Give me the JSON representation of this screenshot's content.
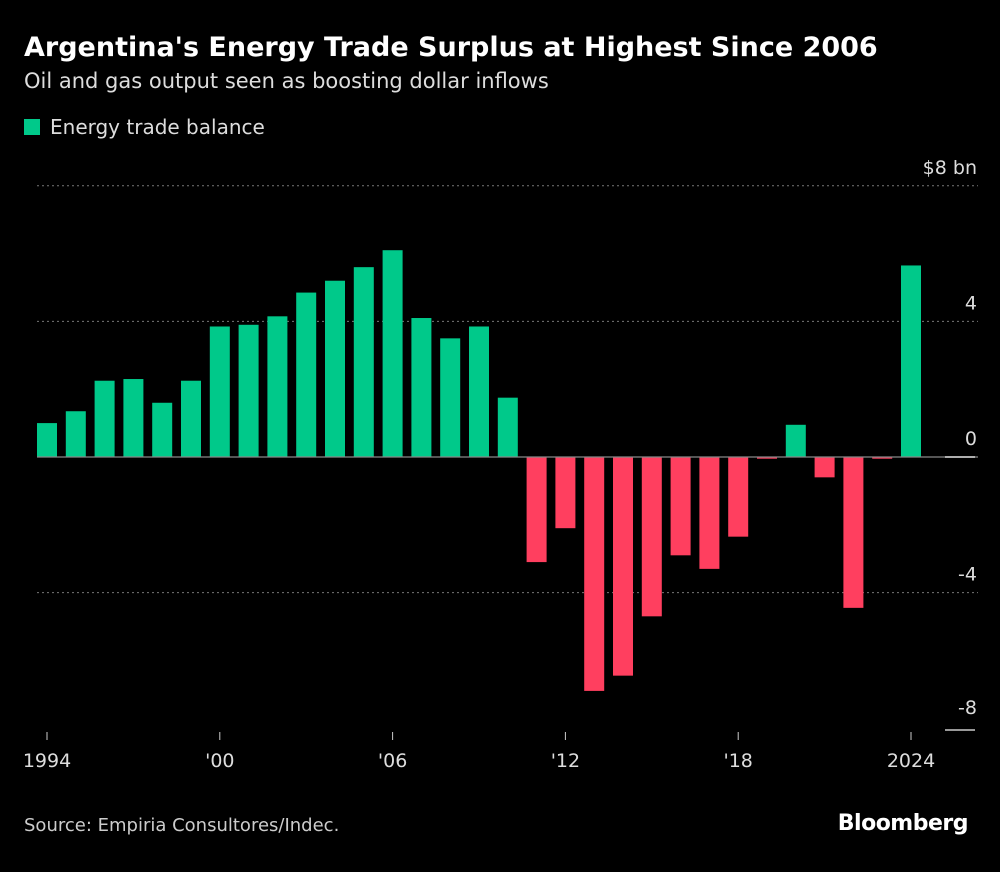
{
  "title": "Argentina's Energy Trade Surplus at Highest Since 2006",
  "subtitle": "Oil and gas output seen as boosting dollar inflows",
  "source": "Source: Empiria Consultores/Indec.",
  "logo": "Bloomberg",
  "colors": {
    "positive": "#00c98a",
    "negative": "#ff3f5f",
    "background": "#000000"
  },
  "chart_data": {
    "type": "bar",
    "legend": [
      {
        "name": "Energy trade balance",
        "color": "#00c98a"
      }
    ],
    "legend_position": "top-left",
    "x": [
      1994,
      1995,
      1996,
      1997,
      1998,
      1999,
      2000,
      2001,
      2002,
      2003,
      2004,
      2005,
      2006,
      2007,
      2008,
      2009,
      2010,
      2011,
      2012,
      2013,
      2014,
      2015,
      2016,
      2017,
      2018,
      2019,
      2020,
      2021,
      2022,
      2023,
      2024
    ],
    "series": [
      {
        "name": "Energy trade balance",
        "values": [
          1.0,
          1.35,
          2.25,
          2.3,
          1.6,
          2.25,
          3.85,
          3.9,
          4.15,
          4.85,
          5.2,
          5.6,
          6.1,
          4.1,
          3.5,
          3.85,
          1.75,
          -3.1,
          -2.1,
          -6.9,
          -6.45,
          -4.7,
          -2.9,
          -3.3,
          -2.35,
          -0.05,
          0.95,
          -0.6,
          -4.45,
          -0.05,
          5.65
        ]
      }
    ],
    "ylim": [
      -8,
      8
    ],
    "yticks": [
      {
        "value": 8,
        "label": "$8 bn"
      },
      {
        "value": 4,
        "label": "4"
      },
      {
        "value": 0,
        "label": "0"
      },
      {
        "value": -4,
        "label": "-4"
      },
      {
        "value": -8,
        "label": "-8"
      }
    ],
    "xticks": [
      {
        "value": 1994,
        "label": "1994"
      },
      {
        "value": 2000,
        "label": "'00"
      },
      {
        "value": 2006,
        "label": "'06"
      },
      {
        "value": 2012,
        "label": "'12"
      },
      {
        "value": 2018,
        "label": "'18"
      },
      {
        "value": 2024,
        "label": "2024"
      }
    ],
    "grid": "horizontal dotted",
    "unit": "$ bn"
  }
}
